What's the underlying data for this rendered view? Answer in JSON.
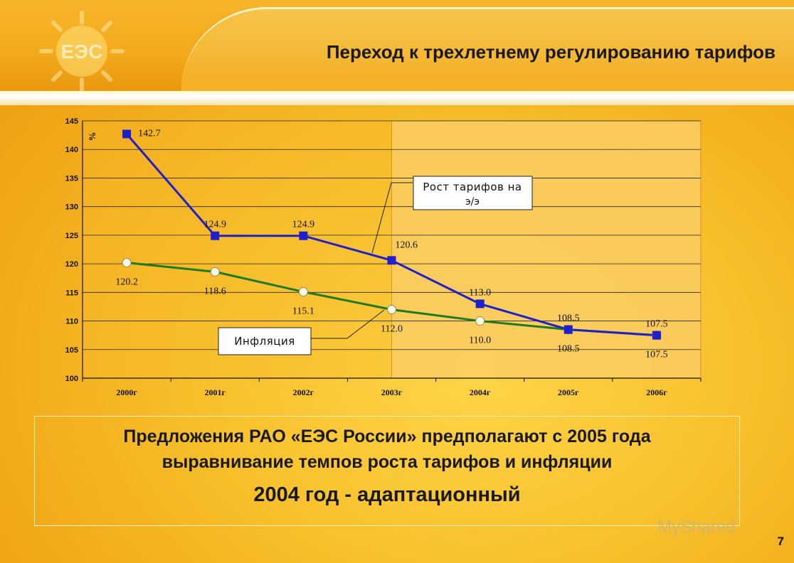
{
  "header": {
    "title": "Переход к трехлетнему регулированию тарифов",
    "logo_text": "ЕЭС"
  },
  "chart_data": {
    "type": "line",
    "categories": [
      "2000г",
      "2001г",
      "2002г",
      "2003г",
      "2004г",
      "2005г",
      "2006г"
    ],
    "series": [
      {
        "name": "Рост тарифов на э/э",
        "values": [
          142.7,
          124.9,
          124.9,
          120.6,
          113.0,
          108.5,
          107.5
        ],
        "color": "#1f1fcc"
      },
      {
        "name": "Инфляция",
        "values": [
          120.2,
          118.6,
          115.1,
          112.0,
          110.0,
          108.5,
          107.5
        ],
        "color": "#1e7a1e"
      }
    ],
    "data_labels_tariff": [
      "142.7",
      "124.9",
      "124.9",
      "120.6",
      "113.0",
      "108.5",
      "107.5"
    ],
    "data_labels_inflation": [
      "120.2",
      "118.6",
      "115.1",
      "112.0",
      "110.0",
      "108.5",
      "107.5"
    ],
    "ylabel": "%",
    "ylim": [
      100,
      145
    ],
    "yticks": [
      "100",
      "105",
      "110",
      "115",
      "120",
      "125",
      "130",
      "135",
      "140",
      "145"
    ],
    "grid": true,
    "highlight_from_category": "2003г",
    "legend_tariff": "Рост тарифов на э/э",
    "legend_inflation": "Инфляция"
  },
  "note": {
    "line1": "Предложения РАО «ЕЭС России» предполагают с 2005 года",
    "line2": "выравнивание темпов роста тарифов и инфляции",
    "line3": "2004 год - адаптационный"
  },
  "page_number": "7",
  "watermark": "MyShared"
}
